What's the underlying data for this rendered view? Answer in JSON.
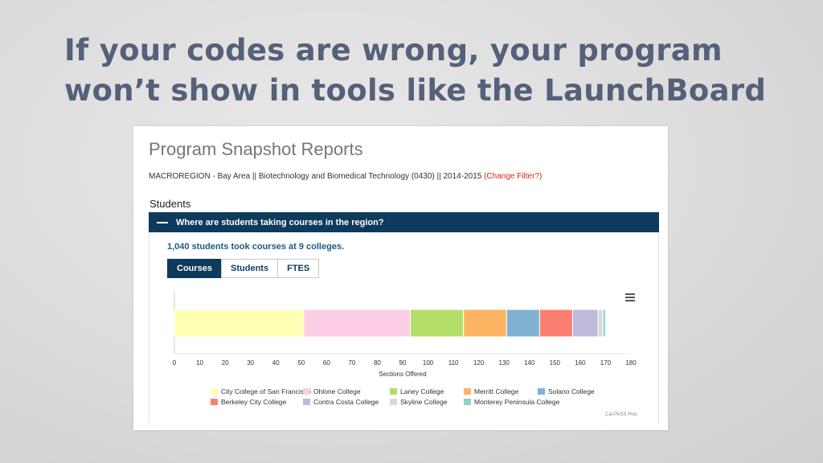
{
  "slide": {
    "title_line1": "If your codes are wrong, your program",
    "title_line2": "won’t show in tools like the LaunchBoard"
  },
  "report": {
    "title": "Program Snapshot Reports",
    "filter_text": "MACROREGION - Bay Area || Biotechnology and Biomedical Technology (0430) || 2014-2015 ",
    "change_filter": "(Change Filter?)",
    "section": "Students",
    "accordion_title": "Where are students taking courses in the region?",
    "summary": "1,040 students took courses at 9 colleges.",
    "tabs": [
      "Courses",
      "Students",
      "FTES"
    ],
    "active_tab": "Courses",
    "credits": "Cal-PASS Plus",
    "colors": {
      "header": "#0e3a5c",
      "link": "#1e5a86",
      "change_filter": "#d9261c"
    }
  },
  "chart_data": {
    "type": "bar",
    "orientation": "horizontal-stacked",
    "categories": [
      ""
    ],
    "series": [
      {
        "name": "City College of San Francisco",
        "values": [
          51
        ],
        "color": "#ffffb3"
      },
      {
        "name": "Ohlone College",
        "values": [
          42
        ],
        "color": "#fccde5"
      },
      {
        "name": "Laney College",
        "values": [
          21
        ],
        "color": "#b3de69"
      },
      {
        "name": "Merritt College",
        "values": [
          17
        ],
        "color": "#fdb462"
      },
      {
        "name": "Solano College",
        "values": [
          13
        ],
        "color": "#80b1d3"
      },
      {
        "name": "Berkeley City College",
        "values": [
          13
        ],
        "color": "#fb8072"
      },
      {
        "name": "Contra Costa College",
        "values": [
          10
        ],
        "color": "#bebada"
      },
      {
        "name": "Skyline College",
        "values": [
          2
        ],
        "color": "#d9d9d9"
      },
      {
        "name": "Monterey Peninsula College",
        "values": [
          1
        ],
        "color": "#8dd3c7"
      }
    ],
    "xlabel": "Sections Offered",
    "xlim": [
      0,
      180
    ],
    "xticks": [
      "0",
      "10",
      "20",
      "30",
      "40",
      "50",
      "60",
      "70",
      "80",
      "90",
      "100",
      "110",
      "120",
      "130",
      "140",
      "150",
      "160",
      "170",
      "180"
    ],
    "legend": "bottom"
  }
}
